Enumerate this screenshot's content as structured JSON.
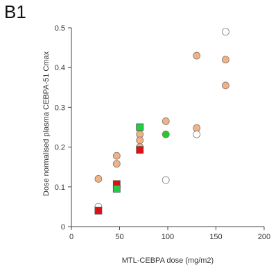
{
  "panel_label": "B1",
  "chart_data": {
    "type": "scatter",
    "xlabel": "MTL-CEBPA dose (mg/m2)",
    "ylabel": "Dose normalised plasma CEBPA-51 Cmax",
    "xlim": [
      0,
      200
    ],
    "ylim": [
      0,
      0.5
    ],
    "xticks": [
      "0",
      "50",
      "100",
      "150",
      "200"
    ],
    "yticks": [
      "0",
      "0.1",
      "0.2",
      "0.3",
      "0.4",
      "0.5"
    ],
    "grid": false,
    "legend": "none",
    "series": [
      {
        "marker": "circle",
        "color": "#f4b183",
        "points": [
          [
            28,
            0.12
          ],
          [
            47,
            0.178
          ],
          [
            47,
            0.158
          ],
          [
            71,
            0.232
          ],
          [
            71,
            0.217
          ],
          [
            71,
            0.2
          ],
          [
            98,
            0.265
          ],
          [
            130,
            0.43
          ],
          [
            130,
            0.248
          ],
          [
            160,
            0.42
          ],
          [
            160,
            0.355
          ]
        ]
      },
      {
        "marker": "circle",
        "color": "#ffffff",
        "points": [
          [
            28,
            0.05
          ],
          [
            98,
            0.117
          ],
          [
            130,
            0.232
          ],
          [
            160,
            0.49
          ]
        ]
      },
      {
        "marker": "circle",
        "color": "#22cc22",
        "points": [
          [
            98,
            0.232
          ]
        ]
      },
      {
        "marker": "square",
        "color": "#dd1111",
        "points": [
          [
            28,
            0.04
          ],
          [
            47,
            0.107
          ],
          [
            71,
            0.193
          ]
        ]
      },
      {
        "marker": "square",
        "color": "#22cc44",
        "points": [
          [
            47,
            0.095
          ],
          [
            71,
            0.25
          ]
        ]
      }
    ]
  }
}
